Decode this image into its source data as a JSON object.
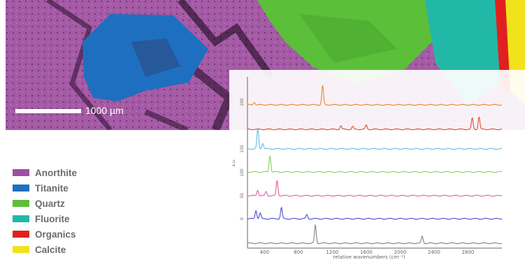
{
  "scalebar": {
    "label": "1000 µm"
  },
  "legend": {
    "items": [
      {
        "label": "Anorthite",
        "color": "#a04ea0"
      },
      {
        "label": "Titanite",
        "color": "#1f6fc0"
      },
      {
        "label": "Quartz",
        "color": "#5cbf3a"
      },
      {
        "label": "Fluorite",
        "color": "#22b8a8"
      },
      {
        "label": "Organics",
        "color": "#e02020"
      },
      {
        "label": "Calcite",
        "color": "#f2e21a"
      }
    ]
  },
  "chart_data": {
    "type": "line",
    "xlabel": "relative wavenumbers (cm⁻¹)",
    "ylabel": "a.u.",
    "x_ticks": [
      400,
      800,
      1200,
      1600,
      2000,
      2400,
      2800
    ],
    "y_ticks": [
      "0",
      "50",
      "100",
      "150",
      "200"
    ],
    "xlim": [
      200,
      3200
    ],
    "series": [
      {
        "color": "#e8913a",
        "baseline": 150,
        "peaks": [
          [
            1086,
            28
          ],
          [
            280,
            4
          ]
        ]
      },
      {
        "color": "#e05a3a",
        "baseline": 185,
        "peaks": [
          [
            2850,
            16
          ],
          [
            2930,
            18
          ],
          [
            1600,
            6
          ],
          [
            1300,
            5
          ],
          [
            1440,
            4
          ]
        ]
      },
      {
        "color": "#6ec3e6",
        "baseline": 213,
        "peaks": [
          [
            322,
            30
          ],
          [
            380,
            8
          ]
        ]
      },
      {
        "color": "#8fd46a",
        "baseline": 246,
        "peaks": [
          [
            465,
            24
          ]
        ]
      },
      {
        "color": "#e86aa8",
        "baseline": 280,
        "peaks": [
          [
            549,
            22
          ],
          [
            320,
            8
          ],
          [
            420,
            6
          ]
        ]
      },
      {
        "color": "#5a5ad0",
        "baseline": 313,
        "peaks": [
          [
            300,
            12
          ],
          [
            600,
            16
          ],
          [
            350,
            8
          ],
          [
            900,
            6
          ]
        ]
      },
      {
        "color": "#8a8a8a",
        "baseline": 348,
        "peaks": [
          [
            1000,
            26
          ],
          [
            2260,
            10
          ]
        ]
      }
    ]
  }
}
